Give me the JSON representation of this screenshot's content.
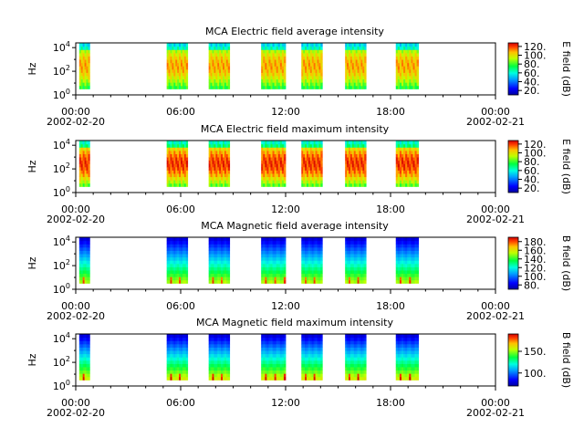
{
  "figure": {
    "x_axis": {
      "ticks": [
        {
          "time": "00:00",
          "date": "2002-02-20"
        },
        {
          "time": "06:00",
          "date": ""
        },
        {
          "time": "12:00",
          "date": ""
        },
        {
          "time": "18:00",
          "date": ""
        },
        {
          "time": "00:00",
          "date": "2002-02-21"
        }
      ],
      "minor_every_hours": 1,
      "range_hours": [
        0,
        24
      ]
    },
    "y_axis_label": "Hz",
    "y_ticks": [
      {
        "base": "10",
        "exp": "0",
        "log10": 0
      },
      {
        "base": "10",
        "exp": "2",
        "log10": 2
      },
      {
        "base": "10",
        "exp": "4",
        "log10": 4
      }
    ]
  },
  "chart_data": [
    {
      "type": "heatmap",
      "title": "MCA  Electric field average intensity",
      "ylabel": "Hz",
      "y_scale": "log",
      "ylim_log10": [
        0,
        4.4
      ],
      "colorbar": {
        "label": "E field (dB)",
        "range": [
          10,
          128
        ],
        "ticks": [
          "20.",
          "40.",
          "60.",
          "80.",
          "100.",
          "120."
        ],
        "tick_values": [
          20,
          40,
          60,
          80,
          100,
          120
        ]
      },
      "data_intervals_hours": [
        [
          0.2,
          0.8
        ],
        [
          5.2,
          6.4
        ],
        [
          7.6,
          8.8
        ],
        [
          10.6,
          12.0
        ],
        [
          12.9,
          14.1
        ],
        [
          15.4,
          16.6
        ],
        [
          18.3,
          19.6
        ]
      ],
      "intensity_peak": 0.58
    },
    {
      "type": "heatmap",
      "title": "MCA  Electric field maximum intensity",
      "ylabel": "Hz",
      "y_scale": "log",
      "ylim_log10": [
        0,
        4.4
      ],
      "colorbar": {
        "label": "E field (dB)",
        "range": [
          10,
          128
        ],
        "ticks": [
          "20.",
          "40.",
          "60.",
          "80.",
          "100.",
          "120."
        ],
        "tick_values": [
          20,
          40,
          60,
          80,
          100,
          120
        ]
      },
      "data_intervals_hours": [
        [
          0.2,
          0.8
        ],
        [
          5.2,
          6.4
        ],
        [
          7.6,
          8.8
        ],
        [
          10.6,
          12.0
        ],
        [
          12.9,
          14.1
        ],
        [
          15.4,
          16.6
        ],
        [
          18.3,
          19.6
        ]
      ],
      "intensity_peak": 0.68
    },
    {
      "type": "heatmap",
      "title": "MCA  Magnetic field average intensity",
      "ylabel": "Hz",
      "y_scale": "log",
      "ylim_log10": [
        0,
        4.4
      ],
      "colorbar": {
        "label": "B field (dB)",
        "range": [
          70,
          190
        ],
        "ticks": [
          "80.",
          "100.",
          "120.",
          "140.",
          "160.",
          "180."
        ],
        "tick_values": [
          80,
          100,
          120,
          140,
          160,
          180
        ]
      },
      "data_intervals_hours": [
        [
          0.2,
          0.8
        ],
        [
          5.2,
          6.4
        ],
        [
          7.6,
          8.8
        ],
        [
          10.6,
          12.0
        ],
        [
          12.9,
          14.1
        ],
        [
          15.4,
          16.6
        ],
        [
          18.3,
          19.6
        ]
      ],
      "intensity_peak": 0.55
    },
    {
      "type": "heatmap",
      "title": "MCA  Magnetic field maximum intensity",
      "ylabel": "Hz",
      "y_scale": "log",
      "ylim_log10": [
        0,
        4.4
      ],
      "colorbar": {
        "label": "B field (dB)",
        "range": [
          70,
          190
        ],
        "ticks": [
          "100.",
          "150."
        ],
        "tick_values": [
          100,
          150
        ]
      },
      "data_intervals_hours": [
        [
          0.2,
          0.8
        ],
        [
          5.2,
          6.4
        ],
        [
          7.6,
          8.8
        ],
        [
          10.6,
          12.0
        ],
        [
          12.9,
          14.1
        ],
        [
          15.4,
          16.6
        ],
        [
          18.3,
          19.6
        ]
      ],
      "intensity_peak": 0.6
    }
  ]
}
